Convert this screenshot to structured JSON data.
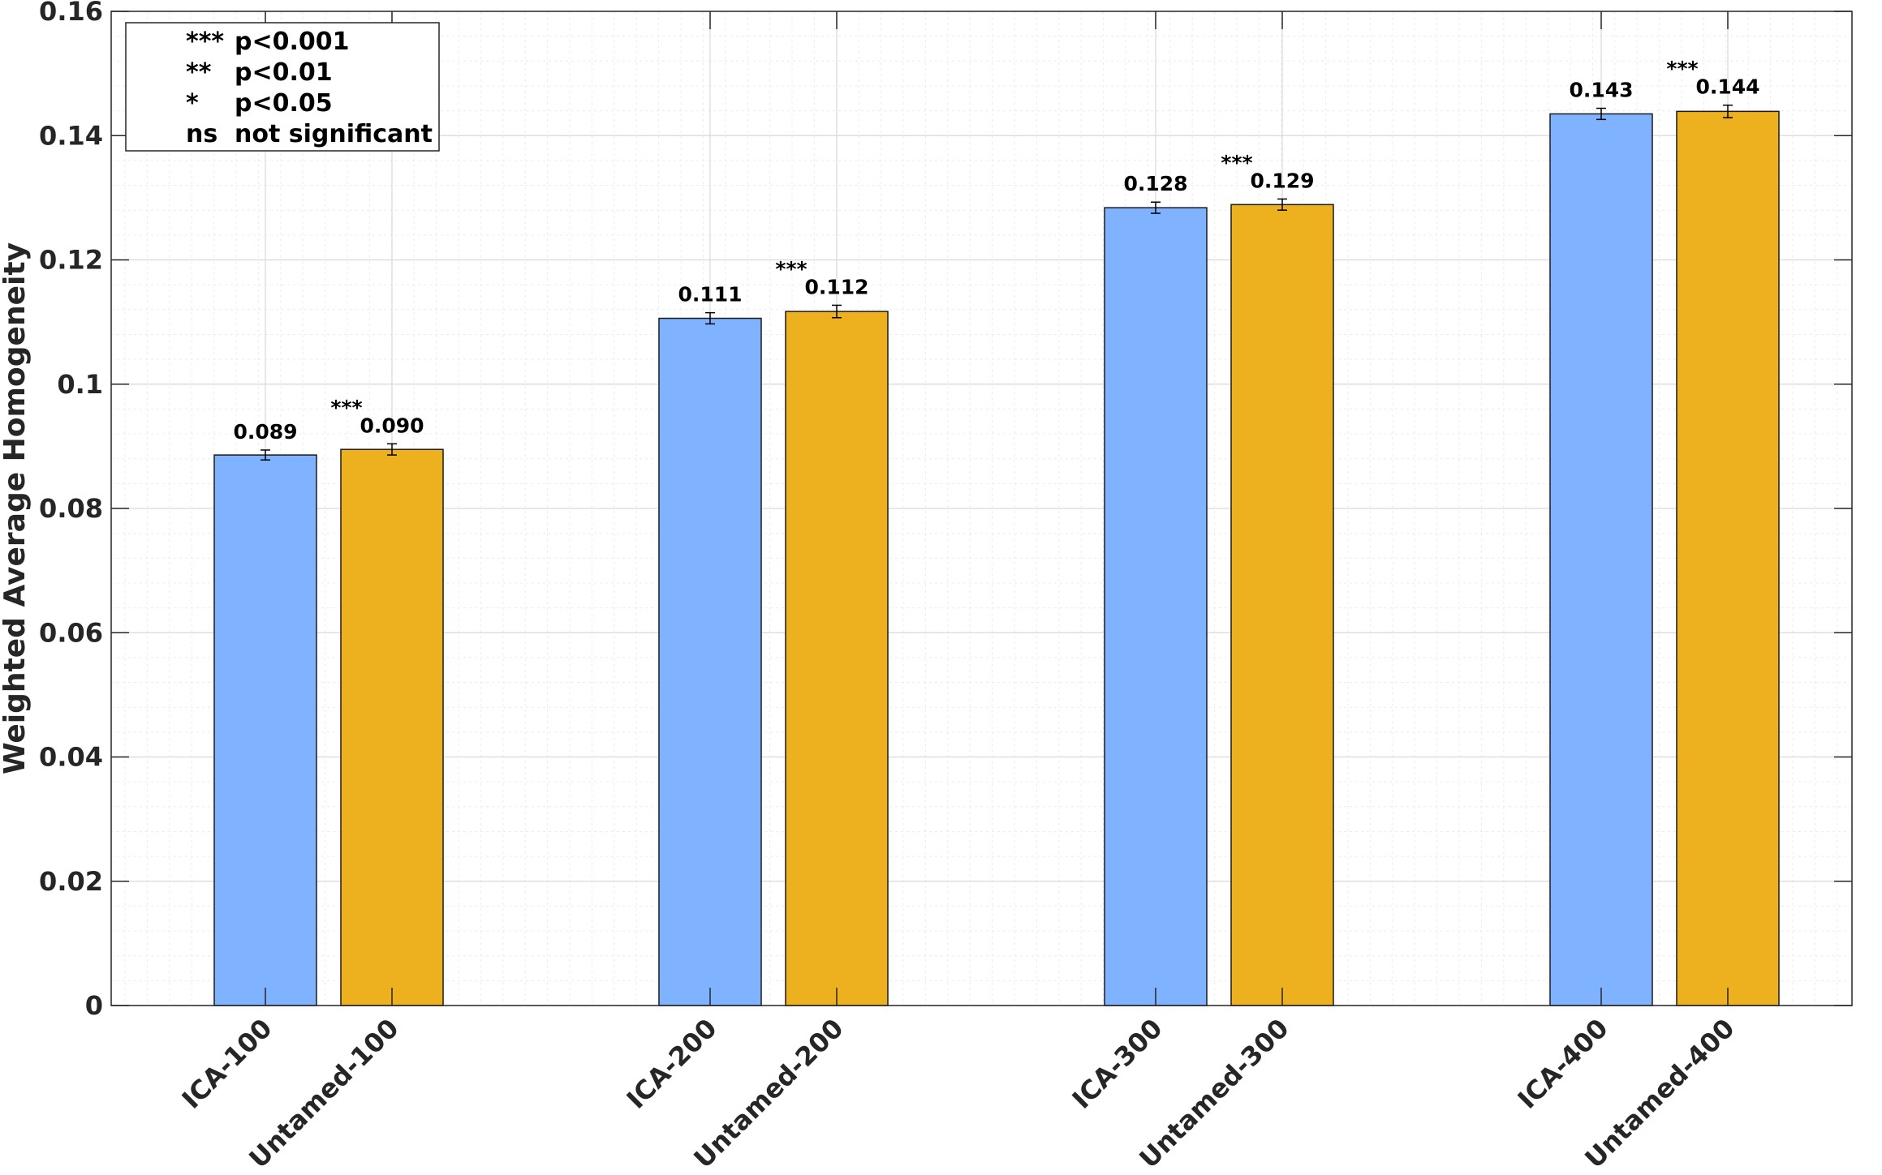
{
  "chart_data": {
    "type": "bar",
    "title": "",
    "xlabel": "",
    "ylabel": "Weighted Average Homogeneity",
    "ylim": [
      0,
      0.16
    ],
    "yticks": [
      0,
      0.02,
      0.04,
      0.06,
      0.08,
      0.1,
      0.12,
      0.14,
      0.16
    ],
    "ytick_labels": [
      "0",
      "0.02",
      "0.04",
      "0.06",
      "0.08",
      "0.1",
      "0.12",
      "0.14",
      "0.16"
    ],
    "grid": true,
    "bars": [
      {
        "category": "ICA-100",
        "value": 0.0886,
        "error": 0.0008,
        "label": "0.089",
        "color": "#80b3ff"
      },
      {
        "category": "Untamed-100",
        "value": 0.0895,
        "error": 0.0009,
        "label": "0.090",
        "color": "#edb120",
        "sig": "***"
      },
      {
        "category": "ICA-200",
        "value": 0.1106,
        "error": 0.0009,
        "label": "0.111",
        "color": "#80b3ff"
      },
      {
        "category": "Untamed-200",
        "value": 0.1117,
        "error": 0.001,
        "label": "0.112",
        "color": "#edb120",
        "sig": "***"
      },
      {
        "category": "ICA-300",
        "value": 0.1284,
        "error": 0.0009,
        "label": "0.128",
        "color": "#80b3ff"
      },
      {
        "category": "Untamed-300",
        "value": 0.1289,
        "error": 0.0009,
        "label": "0.129",
        "color": "#edb120",
        "sig": "***"
      },
      {
        "category": "ICA-400",
        "value": 0.1435,
        "error": 0.0009,
        "label": "0.143",
        "color": "#80b3ff"
      },
      {
        "category": "Untamed-400",
        "value": 0.1439,
        "error": 0.001,
        "label": "0.144",
        "color": "#edb120",
        "sig": "***"
      }
    ],
    "legend": {
      "placement": "top-left",
      "entries": [
        {
          "symbol": "***",
          "text": "p<0.001"
        },
        {
          "symbol": "**",
          "text": "p<0.01"
        },
        {
          "symbol": "*",
          "text": "p<0.05"
        },
        {
          "symbol": "ns",
          "text": "not significant"
        }
      ]
    }
  }
}
